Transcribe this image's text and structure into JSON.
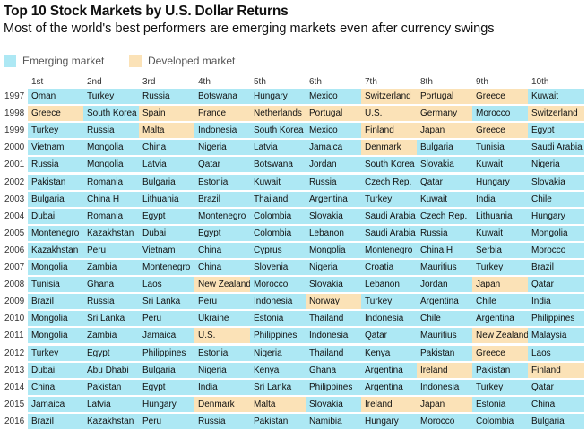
{
  "title": "Top 10 Stock Markets by U.S. Dollar Returns",
  "subtitle": "Most of the world's best performers are emerging markets even after currency swings",
  "legend": {
    "emerging": "Emerging market",
    "developed": "Developed market"
  },
  "colors": {
    "emerging": "#ade8f4",
    "developed": "#fbe2b7"
  },
  "chart_data": {
    "type": "table",
    "title": "Top 10 Stock Markets by U.S. Dollar Returns",
    "subtitle": "Most of the world's best performers are emerging markets even after currency swings",
    "columns": [
      "1st",
      "2nd",
      "3rd",
      "4th",
      "5th",
      "6th",
      "7th",
      "8th",
      "9th",
      "10th"
    ],
    "categories": {
      "E": "Emerging market",
      "D": "Developed market"
    },
    "rows": [
      {
        "year": "1997",
        "markets": [
          "Oman",
          "Turkey",
          "Russia",
          "Botswana",
          "Hungary",
          "Mexico",
          "Switzerland",
          "Portugal",
          "Greece",
          "Kuwait"
        ],
        "types": [
          "E",
          "E",
          "E",
          "E",
          "E",
          "E",
          "D",
          "D",
          "D",
          "E"
        ]
      },
      {
        "year": "1998",
        "markets": [
          "Greece",
          "South Korea",
          "Spain",
          "France",
          "Netherlands",
          "Portugal",
          "U.S.",
          "Germany",
          "Morocco",
          "Switzerland"
        ],
        "types": [
          "D",
          "E",
          "D",
          "D",
          "D",
          "D",
          "D",
          "D",
          "E",
          "D"
        ]
      },
      {
        "year": "1999",
        "markets": [
          "Turkey",
          "Russia",
          "Malta",
          "Indonesia",
          "South Korea",
          "Mexico",
          "Finland",
          "Japan",
          "Greece",
          "Egypt"
        ],
        "types": [
          "E",
          "E",
          "D",
          "E",
          "E",
          "E",
          "D",
          "D",
          "D",
          "E"
        ]
      },
      {
        "year": "2000",
        "markets": [
          "Vietnam",
          "Mongolia",
          "China",
          "Nigeria",
          "Latvia",
          "Jamaica",
          "Denmark",
          "Bulgaria",
          "Tunisia",
          "Saudi Arabia"
        ],
        "types": [
          "E",
          "E",
          "E",
          "E",
          "E",
          "E",
          "D",
          "E",
          "E",
          "E"
        ]
      },
      {
        "year": "2001",
        "markets": [
          "Russia",
          "Mongolia",
          "Latvia",
          "Qatar",
          "Botswana",
          "Jordan",
          "South Korea",
          "Slovakia",
          "Kuwait",
          "Nigeria"
        ],
        "types": [
          "E",
          "E",
          "E",
          "E",
          "E",
          "E",
          "E",
          "E",
          "E",
          "E"
        ]
      },
      {
        "year": "2002",
        "markets": [
          "Pakistan",
          "Romania",
          "Bulgaria",
          "Estonia",
          "Kuwait",
          "Russia",
          "Czech Rep.",
          "Qatar",
          "Hungary",
          "Slovakia"
        ],
        "types": [
          "E",
          "E",
          "E",
          "E",
          "E",
          "E",
          "E",
          "E",
          "E",
          "E"
        ]
      },
      {
        "year": "2003",
        "markets": [
          "Bulgaria",
          "China H",
          "Lithuania",
          "Brazil",
          "Thailand",
          "Argentina",
          "Turkey",
          "Kuwait",
          "India",
          "Chile"
        ],
        "types": [
          "E",
          "E",
          "E",
          "E",
          "E",
          "E",
          "E",
          "E",
          "E",
          "E"
        ]
      },
      {
        "year": "2004",
        "markets": [
          "Dubai",
          "Romania",
          "Egypt",
          "Montenegro",
          "Colombia",
          "Slovakia",
          "Saudi Arabia",
          "Czech Rep.",
          "Lithuania",
          "Hungary"
        ],
        "types": [
          "E",
          "E",
          "E",
          "E",
          "E",
          "E",
          "E",
          "E",
          "E",
          "E"
        ]
      },
      {
        "year": "2005",
        "markets": [
          "Montenegro",
          "Kazakhstan",
          "Dubai",
          "Egypt",
          "Colombia",
          "Lebanon",
          "Saudi Arabia",
          "Russia",
          "Kuwait",
          "Mongolia"
        ],
        "types": [
          "E",
          "E",
          "E",
          "E",
          "E",
          "E",
          "E",
          "E",
          "E",
          "E"
        ]
      },
      {
        "year": "2006",
        "markets": [
          "Kazakhstan",
          "Peru",
          "Vietnam",
          "China",
          "Cyprus",
          "Mongolia",
          "Montenegro",
          "China H",
          "Serbia",
          "Morocco"
        ],
        "types": [
          "E",
          "E",
          "E",
          "E",
          "E",
          "E",
          "E",
          "E",
          "E",
          "E"
        ]
      },
      {
        "year": "2007",
        "markets": [
          "Mongolia",
          "Zambia",
          "Montenegro",
          "China",
          "Slovenia",
          "Nigeria",
          "Croatia",
          "Mauritius",
          "Turkey",
          "Brazil"
        ],
        "types": [
          "E",
          "E",
          "E",
          "E",
          "E",
          "E",
          "E",
          "E",
          "E",
          "E"
        ]
      },
      {
        "year": "2008",
        "markets": [
          "Tunisia",
          "Ghana",
          "Laos",
          "New Zealand",
          "Morocco",
          "Slovakia",
          "Lebanon",
          "Jordan",
          "Japan",
          "Qatar"
        ],
        "types": [
          "E",
          "E",
          "E",
          "D",
          "E",
          "E",
          "E",
          "E",
          "D",
          "E"
        ]
      },
      {
        "year": "2009",
        "markets": [
          "Brazil",
          "Russia",
          "Sri Lanka",
          "Peru",
          "Indonesia",
          "Norway",
          "Turkey",
          "Argentina",
          "Chile",
          "India"
        ],
        "types": [
          "E",
          "E",
          "E",
          "E",
          "E",
          "D",
          "E",
          "E",
          "E",
          "E"
        ]
      },
      {
        "year": "2010",
        "markets": [
          "Mongolia",
          "Sri Lanka",
          "Peru",
          "Ukraine",
          "Estonia",
          "Thailand",
          "Indonesia",
          "Chile",
          "Argentina",
          "Philippines"
        ],
        "types": [
          "E",
          "E",
          "E",
          "E",
          "E",
          "E",
          "E",
          "E",
          "E",
          "E"
        ]
      },
      {
        "year": "2011",
        "markets": [
          "Mongolia",
          "Zambia",
          "Jamaica",
          "U.S.",
          "Philippines",
          "Indonesia",
          "Qatar",
          "Mauritius",
          "New Zealand",
          "Malaysia"
        ],
        "types": [
          "E",
          "E",
          "E",
          "D",
          "E",
          "E",
          "E",
          "E",
          "D",
          "E"
        ]
      },
      {
        "year": "2012",
        "markets": [
          "Turkey",
          "Egypt",
          "Philippines",
          "Estonia",
          "Nigeria",
          "Thailand",
          "Kenya",
          "Pakistan",
          "Greece",
          "Laos"
        ],
        "types": [
          "E",
          "E",
          "E",
          "E",
          "E",
          "E",
          "E",
          "E",
          "D",
          "E"
        ]
      },
      {
        "year": "2013",
        "markets": [
          "Dubai",
          "Abu Dhabi",
          "Bulgaria",
          "Nigeria",
          "Kenya",
          "Ghana",
          "Argentina",
          "Ireland",
          "Pakistan",
          "Finland"
        ],
        "types": [
          "E",
          "E",
          "E",
          "E",
          "E",
          "E",
          "E",
          "D",
          "E",
          "D"
        ]
      },
      {
        "year": "2014",
        "markets": [
          "China",
          "Pakistan",
          "Egypt",
          "India",
          "Sri Lanka",
          "Philippines",
          "Argentina",
          "Indonesia",
          "Turkey",
          "Qatar"
        ],
        "types": [
          "E",
          "E",
          "E",
          "E",
          "E",
          "E",
          "E",
          "E",
          "E",
          "E"
        ]
      },
      {
        "year": "2015",
        "markets": [
          "Jamaica",
          "Latvia",
          "Hungary",
          "Denmark",
          "Malta",
          "Slovakia",
          "Ireland",
          "Japan",
          "Estonia",
          "China"
        ],
        "types": [
          "E",
          "E",
          "E",
          "D",
          "D",
          "E",
          "D",
          "D",
          "E",
          "E"
        ]
      },
      {
        "year": "2016",
        "markets": [
          "Brazil",
          "Kazakhstan",
          "Peru",
          "Russia",
          "Pakistan",
          "Namibia",
          "Hungary",
          "Morocco",
          "Colombia",
          "Bulgaria"
        ],
        "types": [
          "E",
          "E",
          "E",
          "E",
          "E",
          "E",
          "E",
          "E",
          "E",
          "E"
        ]
      }
    ]
  }
}
